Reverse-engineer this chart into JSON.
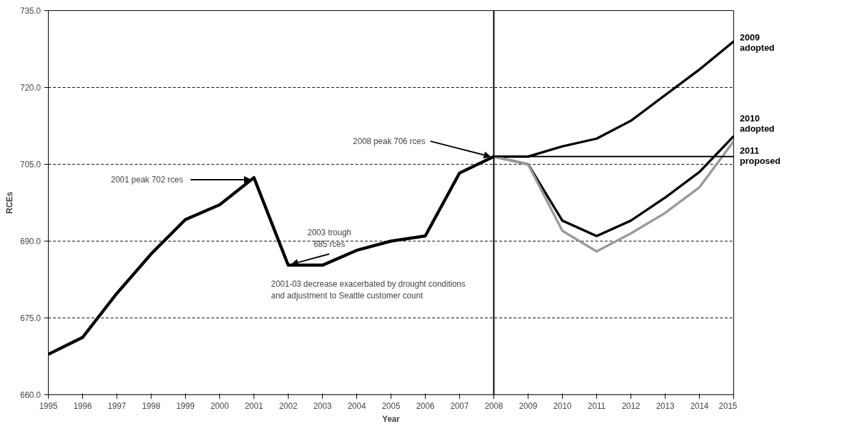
{
  "chart_data": {
    "type": "line",
    "xlabel": "Year",
    "ylabel": "RCEs",
    "xlim": [
      1995,
      2015
    ],
    "xticks": [
      1995,
      1996,
      1997,
      1998,
      1999,
      2000,
      2001,
      2002,
      2003,
      2004,
      2005,
      2006,
      2007,
      2008,
      2009,
      2010,
      2011,
      2012,
      2013,
      2014,
      2015
    ],
    "ylim": [
      660,
      735
    ],
    "yticks": [
      {
        "value": 660,
        "label": "660.0"
      },
      {
        "value": 675,
        "label": "675.0"
      },
      {
        "value": 690,
        "label": "690.0"
      },
      {
        "value": 705,
        "label": "705.0"
      },
      {
        "value": 720,
        "label": "720.0"
      },
      {
        "value": 735,
        "label": "735.0"
      }
    ],
    "grid": "y",
    "legend": false,
    "line_style": "solid",
    "marker": "none",
    "series": [
      {
        "color": "#000000",
        "x": [
          1995,
          1996,
          1997,
          1998,
          1999,
          2000,
          2001,
          2002,
          2003,
          2004,
          2005,
          2006,
          2007,
          2008
        ],
        "values": [
          667.9,
          671.2,
          679.8,
          687.5,
          694.2,
          697.1,
          702.4,
          685.3,
          685.3,
          688.2,
          690.0,
          691.0,
          703.3,
          706.5
        ]
      },
      {
        "name": "2009\nadopted",
        "color": "#000000",
        "x": [
          2008,
          2009,
          2010,
          2011,
          2012,
          2013,
          2014,
          2015
        ],
        "values": [
          706.5,
          706.5,
          708.5,
          710.0,
          713.5,
          718.5,
          723.5,
          729.0
        ]
      },
      {
        "name": "2010\nadopted",
        "color": "#000000",
        "x": [
          2008,
          2009,
          2010,
          2011,
          2012,
          2013,
          2014,
          2015
        ],
        "values": [
          706.5,
          705.0,
          694.0,
          691.0,
          694.0,
          698.5,
          703.5,
          710.5
        ]
      },
      {
        "name": "2011\nproposed",
        "color": "#9a9a9a",
        "x": [
          2008,
          2009,
          2010,
          2011,
          2012,
          2013,
          2014,
          2015
        ],
        "values": [
          706.5,
          705.0,
          692.0,
          688.0,
          691.5,
          695.5,
          700.5,
          709.5
        ]
      },
      {
        "color": "#000000",
        "x": [
          2008,
          2015
        ],
        "values": [
          706.5,
          706.5
        ]
      }
    ],
    "ref_lines": [
      {
        "axis": "x",
        "value": 2008,
        "color": "#000000",
        "line_style": "solid"
      }
    ],
    "annotations": [
      {
        "text": "2001 peak 702  rces",
        "x": 2001,
        "y": 702
      },
      {
        "text": "2003 trough\n685 rces",
        "x": 2002,
        "y": 685
      },
      {
        "text": "2008 peak 706 rces",
        "x": 2008,
        "y": 706
      },
      "2001-03 decrease exacerbated by drought conditions\nand adjustment to Seattle customer count"
    ]
  }
}
